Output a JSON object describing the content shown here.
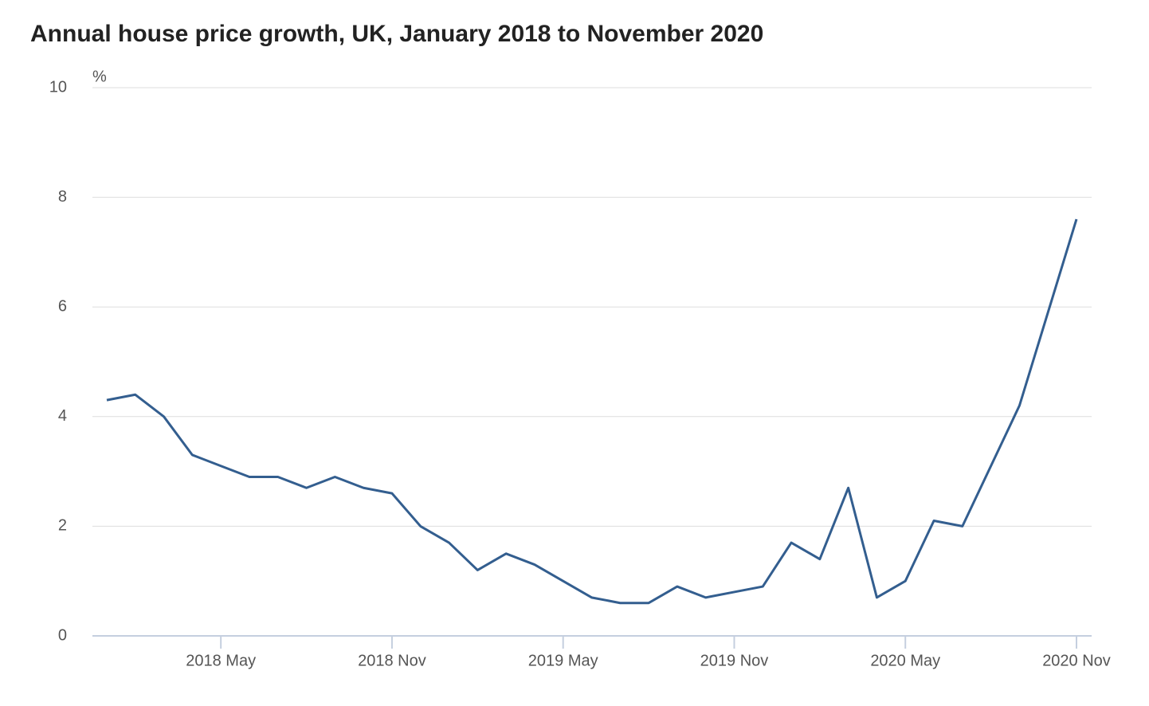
{
  "chart_data": {
    "type": "line",
    "title": "Annual house price growth, UK, January 2018 to November 2020",
    "y_unit": "%",
    "categories": [
      null,
      null,
      null,
      null,
      "2018 May",
      null,
      null,
      null,
      null,
      null,
      "2018 Nov",
      null,
      null,
      null,
      null,
      null,
      "2019 May",
      null,
      null,
      null,
      null,
      null,
      "2019 Nov",
      null,
      null,
      null,
      null,
      null,
      "2020 May",
      null,
      null,
      null,
      null,
      null,
      "2020 Nov"
    ],
    "series": [
      {
        "name": "Annual house price growth",
        "color": "#335e8f",
        "values": [
          4.3,
          4.4,
          4.0,
          3.3,
          3.1,
          2.9,
          2.9,
          2.7,
          2.9,
          2.7,
          2.6,
          2.0,
          1.7,
          1.2,
          1.5,
          1.3,
          1.0,
          0.7,
          0.6,
          0.6,
          0.9,
          0.7,
          0.8,
          0.9,
          1.7,
          1.4,
          2.7,
          0.7,
          1.0,
          2.1,
          2.0,
          3.1,
          4.2,
          5.9,
          7.6
        ]
      }
    ],
    "ylim": [
      0,
      10
    ],
    "yticks": [
      0,
      2,
      4,
      6,
      8,
      10
    ],
    "grid": true
  }
}
